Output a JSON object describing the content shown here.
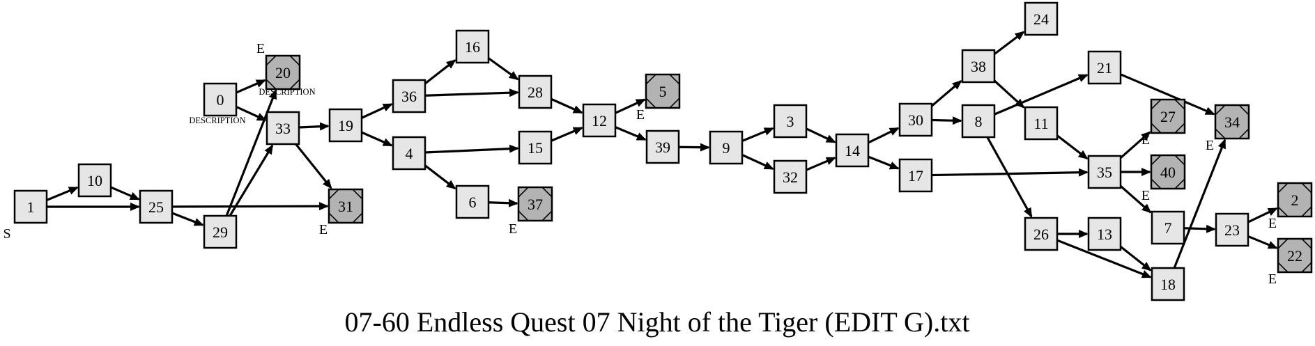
{
  "title": "07-60 Endless Quest 07 Night of the Tiger (EDIT G).txt",
  "colors": {
    "node_fill": "#e6e6e6",
    "end_fill": "#b3b3b3",
    "stroke": "#000000"
  },
  "nodes": [
    {
      "id": "1",
      "kind": "start",
      "mark": "S"
    },
    {
      "id": "10"
    },
    {
      "id": "25"
    },
    {
      "id": "29"
    },
    {
      "id": "0",
      "desc": "DESCRIPTION"
    },
    {
      "id": "20",
      "kind": "end",
      "mark": "E",
      "desc": "DESCRIPTION"
    },
    {
      "id": "33"
    },
    {
      "id": "31",
      "kind": "end",
      "mark": "E"
    },
    {
      "id": "19"
    },
    {
      "id": "36"
    },
    {
      "id": "4"
    },
    {
      "id": "16"
    },
    {
      "id": "28"
    },
    {
      "id": "15"
    },
    {
      "id": "6"
    },
    {
      "id": "37",
      "kind": "end",
      "mark": "E"
    },
    {
      "id": "12"
    },
    {
      "id": "5",
      "kind": "end",
      "mark": "E"
    },
    {
      "id": "39"
    },
    {
      "id": "9"
    },
    {
      "id": "3"
    },
    {
      "id": "32"
    },
    {
      "id": "14"
    },
    {
      "id": "30"
    },
    {
      "id": "17"
    },
    {
      "id": "38"
    },
    {
      "id": "24"
    },
    {
      "id": "8"
    },
    {
      "id": "11"
    },
    {
      "id": "21"
    },
    {
      "id": "26"
    },
    {
      "id": "13"
    },
    {
      "id": "35"
    },
    {
      "id": "27",
      "kind": "end",
      "mark": "E"
    },
    {
      "id": "40",
      "kind": "end",
      "mark": "E"
    },
    {
      "id": "7"
    },
    {
      "id": "18"
    },
    {
      "id": "23"
    },
    {
      "id": "34",
      "kind": "end",
      "mark": "E"
    },
    {
      "id": "2",
      "kind": "end",
      "mark": "E"
    },
    {
      "id": "22",
      "kind": "end",
      "mark": "E"
    }
  ],
  "edges": [
    [
      "1",
      "10"
    ],
    [
      "1",
      "25"
    ],
    [
      "10",
      "25"
    ],
    [
      "25",
      "29"
    ],
    [
      "25",
      "31"
    ],
    [
      "29",
      "20"
    ],
    [
      "29",
      "33"
    ],
    [
      "0",
      "20"
    ],
    [
      "0",
      "33"
    ],
    [
      "33",
      "19"
    ],
    [
      "33",
      "31"
    ],
    [
      "19",
      "36"
    ],
    [
      "19",
      "4"
    ],
    [
      "36",
      "16"
    ],
    [
      "36",
      "28"
    ],
    [
      "16",
      "28"
    ],
    [
      "4",
      "15"
    ],
    [
      "4",
      "6"
    ],
    [
      "6",
      "37"
    ],
    [
      "28",
      "12"
    ],
    [
      "15",
      "12"
    ],
    [
      "12",
      "5"
    ],
    [
      "12",
      "39"
    ],
    [
      "39",
      "9"
    ],
    [
      "9",
      "3"
    ],
    [
      "9",
      "32"
    ],
    [
      "3",
      "14"
    ],
    [
      "32",
      "14"
    ],
    [
      "14",
      "30"
    ],
    [
      "14",
      "17"
    ],
    [
      "30",
      "38"
    ],
    [
      "30",
      "8"
    ],
    [
      "38",
      "24"
    ],
    [
      "38",
      "11"
    ],
    [
      "8",
      "21"
    ],
    [
      "8",
      "26"
    ],
    [
      "11",
      "35"
    ],
    [
      "17",
      "35"
    ],
    [
      "21",
      "34"
    ],
    [
      "35",
      "27"
    ],
    [
      "35",
      "40"
    ],
    [
      "35",
      "7"
    ],
    [
      "26",
      "13"
    ],
    [
      "26",
      "18"
    ],
    [
      "13",
      "18"
    ],
    [
      "7",
      "23"
    ],
    [
      "18",
      "34"
    ],
    [
      "23",
      "2"
    ],
    [
      "23",
      "22"
    ]
  ]
}
